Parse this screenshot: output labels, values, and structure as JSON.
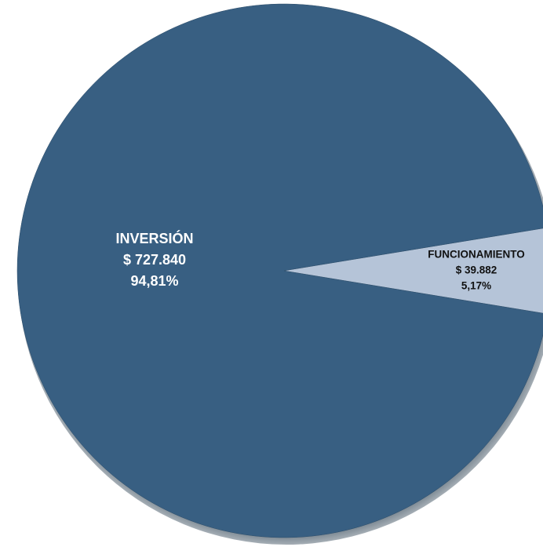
{
  "chart_data": {
    "type": "pie",
    "categories": [
      "INVERSIÓN",
      "FUNCIONAMIENTO"
    ],
    "values": [
      94.81,
      5.17
    ],
    "value_labels": [
      "94,81%",
      "5,17%"
    ],
    "amount_labels": [
      "$ 727.840",
      "$ 39.882"
    ],
    "colors": [
      "#385f82",
      "#b5c4d8"
    ]
  }
}
